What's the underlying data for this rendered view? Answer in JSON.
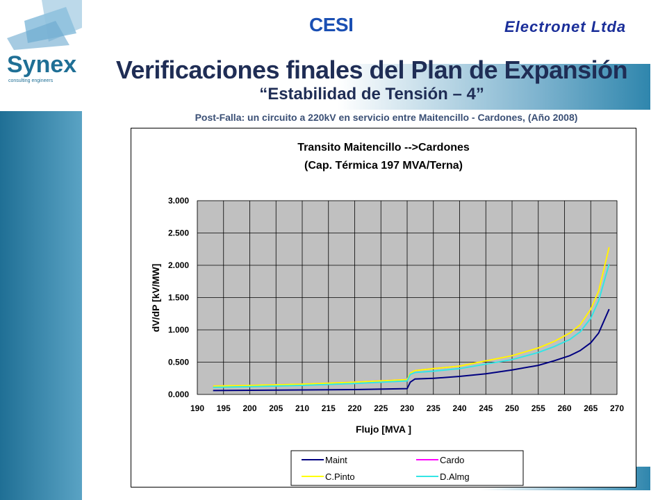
{
  "header": {
    "cesi": "CESI",
    "electronet": "Electronet Ltda",
    "title": "Verificaciones finales del Plan de Expansión",
    "subtitle": "“Estabilidad de Tensión – 4”",
    "caption": "Post-Falla: un circuito a 220kV en servicio entre Maitencillo - Cardones, (Año 2008)"
  },
  "logo": {
    "brand": "Synex",
    "tagline": "consulting engineers",
    "colors": {
      "blue": "#1f6f95",
      "light": "#8fc1de"
    }
  },
  "chart_data": {
    "type": "line",
    "title": "Transito Maitencillo -->Cardones",
    "subtitle": "(Cap. Térmica 197 MVA/Terna)",
    "xlabel": "Flujo [MVA ]",
    "ylabel": "dV/dP  [kV/MW]",
    "xlim": [
      190,
      270
    ],
    "ylim": [
      0,
      3
    ],
    "x_ticks": [
      "190",
      "195",
      "200",
      "205",
      "210",
      "215",
      "220",
      "225",
      "230",
      "235",
      "240",
      "245",
      "250",
      "255",
      "260",
      "265",
      "270"
    ],
    "y_ticks": [
      "0.000",
      "0.500",
      "1.000",
      "1.500",
      "2.000",
      "2.500",
      "3.000"
    ],
    "grid": true,
    "plot_background": "#c0c0c0",
    "legend_position": "bottom",
    "series": [
      {
        "name": "Maint",
        "color": "#000080",
        "x": [
          193,
          200,
          210,
          220,
          230,
          230.6,
          231.5,
          235,
          240,
          245,
          250,
          255,
          258,
          261,
          263,
          265,
          266.5,
          268.5
        ],
        "y": [
          0.06,
          0.065,
          0.07,
          0.075,
          0.09,
          0.19,
          0.24,
          0.25,
          0.28,
          0.32,
          0.38,
          0.45,
          0.52,
          0.6,
          0.68,
          0.8,
          0.95,
          1.32
        ]
      },
      {
        "name": "Cardo",
        "color": "#ff00ff",
        "x": [
          193,
          200,
          210,
          220,
          230,
          230.6,
          231.5,
          235,
          240,
          245,
          250,
          255,
          258,
          261,
          263,
          265,
          266.5,
          268.5
        ],
        "y": [
          0.13,
          0.14,
          0.16,
          0.19,
          0.23,
          0.33,
          0.37,
          0.4,
          0.44,
          0.52,
          0.6,
          0.72,
          0.82,
          0.95,
          1.08,
          1.32,
          1.6,
          2.28
        ]
      },
      {
        "name": "C.Pinto",
        "color": "#ffff00",
        "x": [
          193,
          200,
          210,
          220,
          230,
          230.6,
          231.5,
          235,
          240,
          245,
          250,
          255,
          258,
          261,
          263,
          265,
          266.5,
          268.5
        ],
        "y": [
          0.13,
          0.14,
          0.16,
          0.19,
          0.23,
          0.33,
          0.37,
          0.4,
          0.44,
          0.52,
          0.6,
          0.72,
          0.82,
          0.95,
          1.08,
          1.32,
          1.6,
          2.28
        ]
      },
      {
        "name": "D.Almg",
        "color": "#33e5e5",
        "x": [
          193,
          200,
          210,
          220,
          230,
          230.6,
          231.5,
          235,
          240,
          245,
          250,
          255,
          258,
          261,
          263,
          265,
          266.5,
          268.5
        ],
        "y": [
          0.11,
          0.12,
          0.14,
          0.17,
          0.21,
          0.31,
          0.34,
          0.36,
          0.4,
          0.47,
          0.54,
          0.65,
          0.74,
          0.85,
          0.97,
          1.18,
          1.45,
          2.02
        ]
      }
    ]
  }
}
